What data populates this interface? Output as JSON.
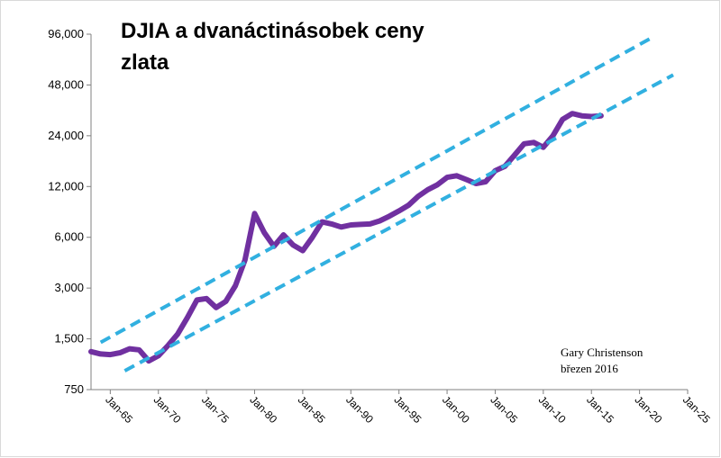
{
  "chart_data": {
    "type": "line",
    "title_lines": [
      "DJIA a dvanáctinásobek ceny",
      "zlata"
    ],
    "y_scale": "log2",
    "ylim": [
      750,
      96000
    ],
    "y_ticks": [
      750,
      1500,
      3000,
      6000,
      12000,
      24000,
      48000,
      96000
    ],
    "y_tick_labels": [
      "750",
      "1,500",
      "3,000",
      "6,000",
      "12,000",
      "24,000",
      "48,000",
      "96,000"
    ],
    "xlim": [
      1963,
      2025
    ],
    "x_ticks": [
      1965,
      1970,
      1975,
      1980,
      1985,
      1990,
      1995,
      2000,
      2005,
      2010,
      2015,
      2020,
      2025
    ],
    "x_tick_labels": [
      "Jan-65",
      "Jan-70",
      "Jan-75",
      "Jan-80",
      "Jan-85",
      "Jan-90",
      "Jan-95",
      "Jan-00",
      "Jan-05",
      "Jan-10",
      "Jan-15",
      "Jan-20",
      "Jan-25"
    ],
    "grid": false,
    "legend": "none",
    "series": [
      {
        "color": "#7030a0",
        "style": "solid",
        "x": [
          1963,
          1964,
          1965,
          1966,
          1967,
          1968,
          1969,
          1970,
          1971,
          1972,
          1973,
          1974,
          1975,
          1976,
          1977,
          1978,
          1979,
          1980,
          1981,
          1982,
          1983,
          1984,
          1985,
          1986,
          1987,
          1988,
          1989,
          1990,
          1991,
          1992,
          1993,
          1994,
          1995,
          1996,
          1997,
          1998,
          1999,
          2000,
          2001,
          2002,
          2003,
          2004,
          2005,
          2006,
          2007,
          2008,
          2009,
          2010,
          2011,
          2012,
          2013,
          2014,
          2015,
          2016
        ],
        "values": [
          1260,
          1220,
          1210,
          1240,
          1310,
          1290,
          1110,
          1190,
          1370,
          1600,
          2000,
          2550,
          2600,
          2300,
          2500,
          3100,
          4400,
          8300,
          6400,
          5300,
          6200,
          5400,
          5000,
          6000,
          7400,
          7200,
          6900,
          7100,
          7150,
          7200,
          7500,
          8000,
          8600,
          9300,
          10500,
          11500,
          12300,
          13600,
          13900,
          13200,
          12500,
          12800,
          14900,
          15800,
          18400,
          21500,
          21900,
          20500,
          24000,
          30000,
          32500,
          31500,
          31200,
          31500
        ]
      },
      {
        "color": "#31b0e0",
        "style": "dashed",
        "x": [
          1964,
          2021.5
        ],
        "values": [
          1430,
          93000
        ]
      },
      {
        "color": "#31b0e0",
        "style": "dashed",
        "x": [
          1966.5,
          2023.5
        ],
        "values": [
          970,
          55000
        ]
      }
    ]
  },
  "credit": {
    "author": "Gary Christenson",
    "date": "březen 2016"
  },
  "colors": {
    "main_line": "#7030a0",
    "channel_lines": "#31b0e0",
    "axis": "#808080"
  }
}
